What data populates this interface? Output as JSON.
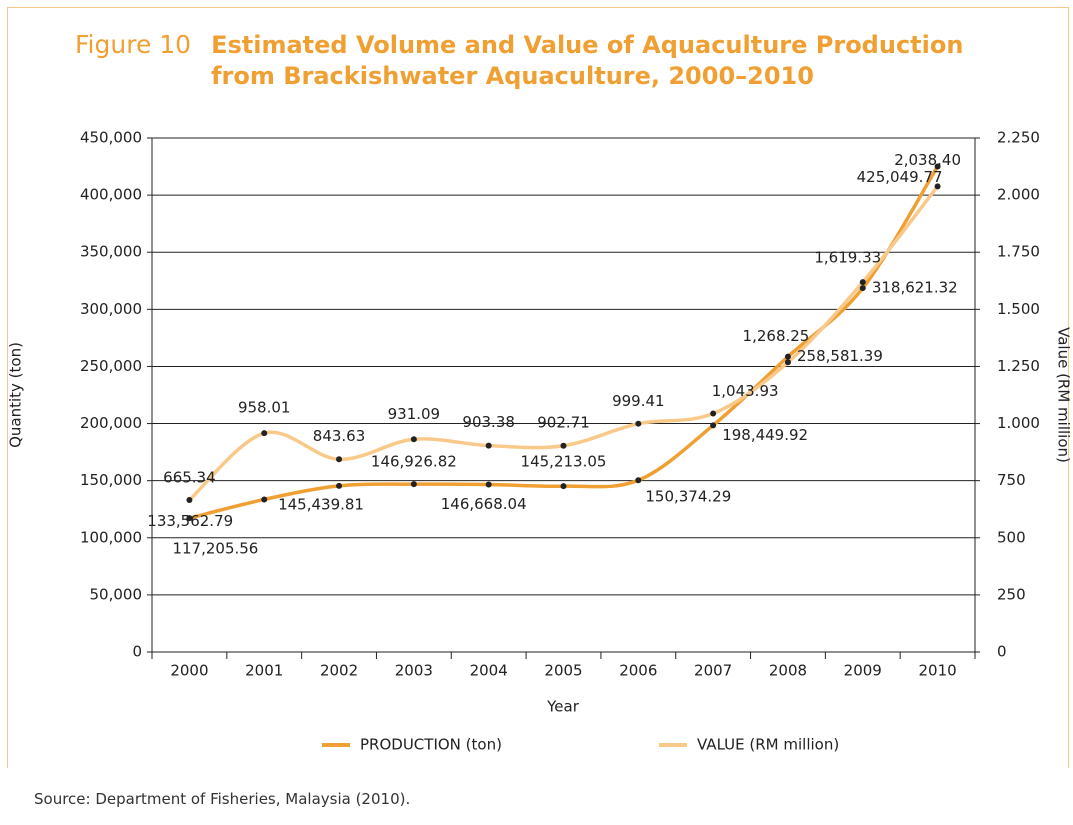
{
  "chart_data": {
    "type": "line",
    "figure_label": "Figure 10",
    "title": "Estimated Volume and Value of Aquaculture Production from Brackishwater Aquaculture, 2000–2010",
    "x_label": "Year",
    "y_label": "Quantity (ton)",
    "y2_label": "Value (RM million)",
    "source": "Source: Department of Fisheries, Malaysia (2010).",
    "categories": [
      "2000",
      "2001",
      "2002",
      "2003",
      "2004",
      "2005",
      "2006",
      "2007",
      "2008",
      "2009",
      "2010"
    ],
    "series": [
      {
        "name": "PRODUCTION (ton)",
        "color": "#f0a033",
        "values": [
          117205.56,
          133562.79,
          145439.81,
          146926.82,
          146668.04,
          145213.05,
          150374.29,
          198449.92,
          258581.39,
          318621.32,
          425049.77
        ],
        "value_labels": [
          "117,205.56",
          "133,562.79",
          "145,439.81",
          "146,926.82",
          "146,668.04",
          "145,213.05",
          "150,374.29",
          "198,449.92",
          "258,581.39",
          "318,621.32",
          "425,049.77"
        ]
      },
      {
        "name": "VALUE (RM million)",
        "color": "#f9c98a",
        "axis": "y2",
        "values": [
          665.34,
          958.01,
          843.63,
          931.09,
          903.38,
          902.71,
          999.41,
          1043.93,
          1268.25,
          1619.33,
          2038.4
        ],
        "value_labels": [
          "665.34",
          "958.01",
          "843.63",
          "931.09",
          "903.38",
          "902.71",
          "999.41",
          "1,043.93",
          "1,268.25",
          "1,619.33",
          "2,038.40"
        ]
      }
    ],
    "ylim": [
      0,
      450000
    ],
    "yticks": [
      0,
      {
        "value": 50000,
        "label": "50,000"
      },
      {
        "value": 100000,
        "label": "100,000"
      },
      {
        "value": 150000,
        "label": "150,000"
      },
      {
        "value": 200000,
        "label": "200,000"
      },
      {
        "value": 250000,
        "label": "250,000"
      },
      {
        "value": 300000,
        "label": "300,000"
      },
      {
        "value": 350000,
        "label": "350,000"
      },
      {
        "value": 400000,
        "label": "400,000"
      },
      {
        "value": 450000,
        "label": "450,000"
      }
    ],
    "y2lim": [
      0,
      2250
    ],
    "y2ticks": [
      0,
      250,
      500,
      750,
      {
        "value": 1000,
        "label": "1.000"
      },
      {
        "value": 1250,
        "label": "1.250"
      },
      {
        "value": 1500,
        "label": "1.500"
      },
      {
        "value": 1750,
        "label": "1.750"
      },
      {
        "value": 2000,
        "label": "2.000"
      },
      {
        "value": 2250,
        "label": "2.250"
      }
    ],
    "grid": true,
    "smooth": true,
    "legend": "bottom"
  }
}
